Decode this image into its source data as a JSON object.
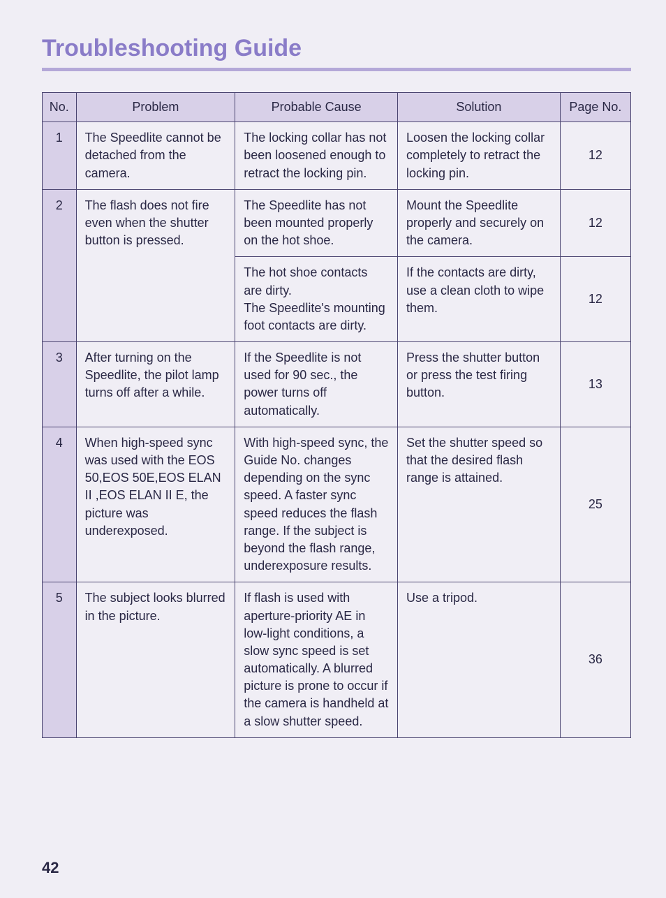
{
  "title": "Troubleshooting Guide",
  "page_number": "42",
  "colors": {
    "title": "#8a7cc8",
    "rule": "#b4a8d8",
    "header_bg": "#d8d0e8",
    "border": "#4a4470",
    "text": "#2a2845",
    "page_bg": "#f0eef5"
  },
  "columns": {
    "no": "No.",
    "problem": "Problem",
    "cause": "Probable Cause",
    "solution": "Solution",
    "page": "Page No."
  },
  "rows": [
    {
      "no": "1",
      "problem": "The Speedlite cannot be detached from the camera.",
      "cause": "The locking collar has not been loosened enough to retract the locking pin.",
      "solution": "Loosen the locking collar completely to retract the locking pin.",
      "page": "12",
      "problem_rowspan": 1
    },
    {
      "no": "2",
      "problem": "The flash does not fire even when the shutter button is pressed.",
      "cause": "The Speedlite has not been mounted properly on the hot shoe.",
      "solution": "Mount the Speedlite properly and securely on the camera.",
      "page": "12",
      "problem_rowspan": 2
    },
    {
      "cause": "The hot shoe contacts are dirty.\nThe Speedlite's mounting foot contacts are dirty.",
      "solution": "If the contacts are dirty, use a clean cloth to wipe them.",
      "page": "12"
    },
    {
      "no": "3",
      "problem": "After turning on the Speedlite, the pilot lamp turns off after a while.",
      "cause": "If the Speedlite is not used for 90 sec., the power turns off automatically.",
      "solution": "Press the shutter button or press the test firing button.",
      "page": "13",
      "problem_rowspan": 1
    },
    {
      "no": "4",
      "problem": "When high-speed sync was used with the EOS 50,EOS 50E,EOS ELAN II ,EOS ELAN II E, the picture was underexposed.",
      "cause": "With high-speed sync, the Guide No. changes depending on the sync speed. A faster sync speed reduces the flash range. If the subject is beyond the flash range, underexposure results.",
      "solution": "Set the shutter speed so that the desired flash range is attained.",
      "page": "25",
      "problem_rowspan": 1
    },
    {
      "no": "5",
      "problem": "The subject looks blurred in the picture.",
      "cause": "If flash is used with aperture-priority AE in low-light conditions, a slow sync speed is set automatically. A blurred picture is prone to occur if the camera is handheld at a slow shutter speed.",
      "solution": "Use a tripod.",
      "page": "36",
      "problem_rowspan": 1
    }
  ]
}
